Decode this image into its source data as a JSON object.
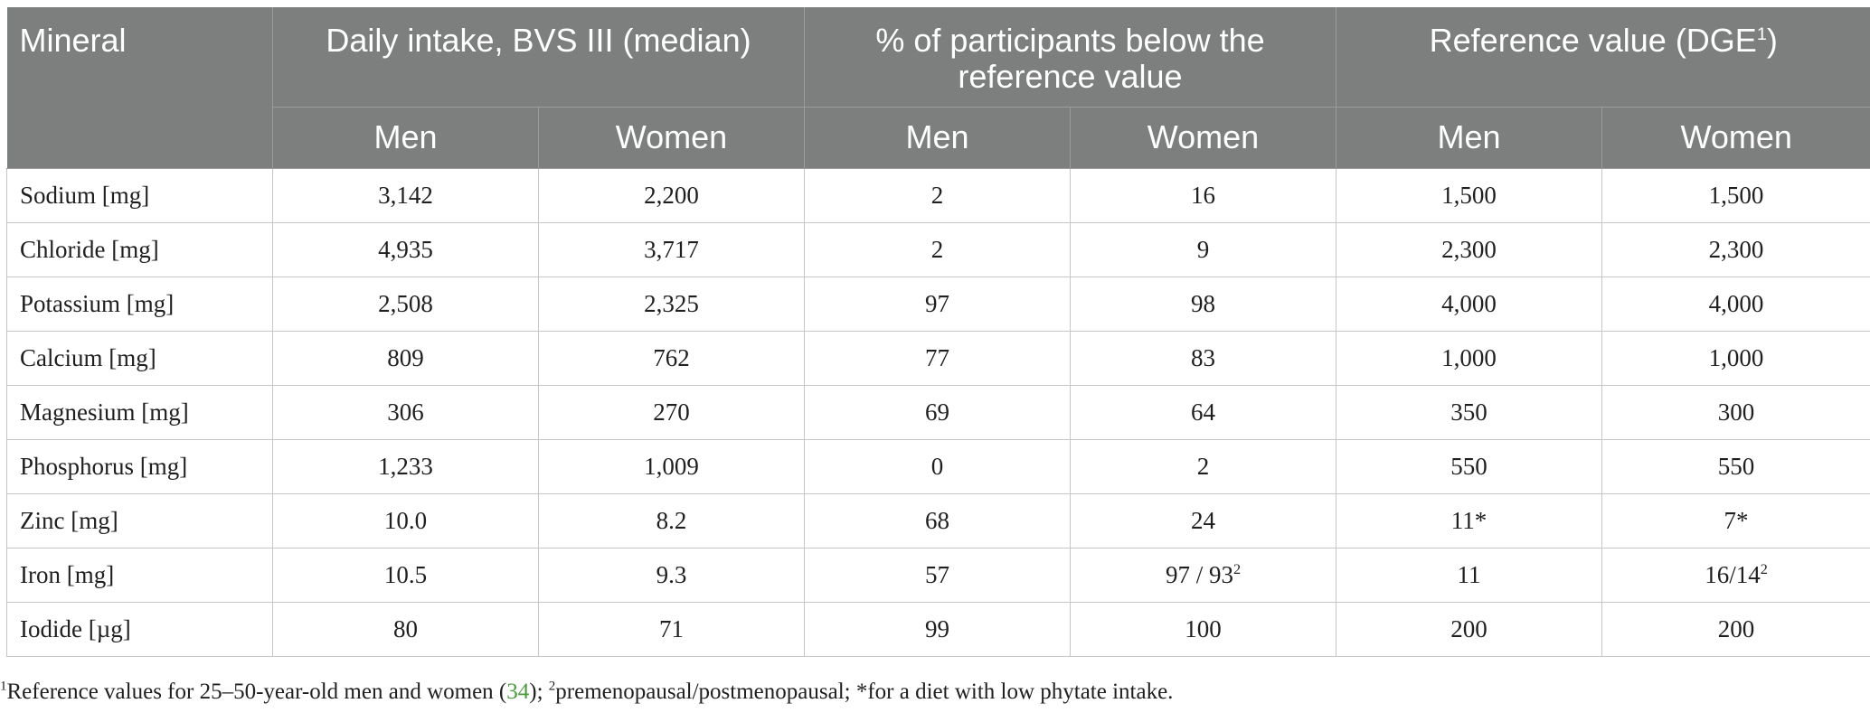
{
  "table": {
    "headers": {
      "mineral": "Mineral",
      "group_intake": "Daily intake, BVS III (median)",
      "group_below": "% of participants below the reference value",
      "group_reference": "Reference value (DGE",
      "group_reference_sup": "1",
      "group_reference_close": ")",
      "men": "Men",
      "women": "Women"
    },
    "rows": [
      {
        "mineral": "Sodium [mg]",
        "intake_men": "3,142",
        "intake_women": "2,200",
        "below_men": "2",
        "below_women": "16",
        "below_women_sup": "",
        "ref_men": "1,500",
        "ref_women": "1,500",
        "ref_women_sup": ""
      },
      {
        "mineral": "Chloride [mg]",
        "intake_men": "4,935",
        "intake_women": "3,717",
        "below_men": "2",
        "below_women": "9",
        "below_women_sup": "",
        "ref_men": "2,300",
        "ref_women": "2,300",
        "ref_women_sup": ""
      },
      {
        "mineral": "Potassium [mg]",
        "intake_men": "2,508",
        "intake_women": "2,325",
        "below_men": "97",
        "below_women": "98",
        "below_women_sup": "",
        "ref_men": "4,000",
        "ref_women": "4,000",
        "ref_women_sup": ""
      },
      {
        "mineral": "Calcium [mg]",
        "intake_men": "809",
        "intake_women": "762",
        "below_men": "77",
        "below_women": "83",
        "below_women_sup": "",
        "ref_men": "1,000",
        "ref_women": "1,000",
        "ref_women_sup": ""
      },
      {
        "mineral": "Magnesium [mg]",
        "intake_men": "306",
        "intake_women": "270",
        "below_men": "69",
        "below_women": "64",
        "below_women_sup": "",
        "ref_men": "350",
        "ref_women": "300",
        "ref_women_sup": ""
      },
      {
        "mineral": "Phosphorus [mg]",
        "intake_men": "1,233",
        "intake_women": "1,009",
        "below_men": "0",
        "below_women": "2",
        "below_women_sup": "",
        "ref_men": "550",
        "ref_women": "550",
        "ref_women_sup": ""
      },
      {
        "mineral": "Zinc [mg]",
        "intake_men": "10.0",
        "intake_women": "8.2",
        "below_men": "68",
        "below_women": "24",
        "below_women_sup": "",
        "ref_men": "11*",
        "ref_women": "7*",
        "ref_women_sup": ""
      },
      {
        "mineral": "Iron [mg]",
        "intake_men": "10.5",
        "intake_women": "9.3",
        "below_men": "57",
        "below_women": "97 / 93",
        "below_women_sup": "2",
        "ref_men": "11",
        "ref_women": "16/14",
        "ref_women_sup": "2"
      },
      {
        "mineral": "Iodide [µg]",
        "intake_men": "80",
        "intake_women": "71",
        "below_men": "99",
        "below_women": "100",
        "below_women_sup": "",
        "ref_men": "200",
        "ref_women": "200",
        "ref_women_sup": ""
      }
    ]
  },
  "footnote": {
    "sup1": "1",
    "text1": "Reference values for 25–50-year-old men and women (",
    "ref": "34",
    "text2": "); ",
    "sup2": "2",
    "text3": "premenopausal/postmenopausal; *for a diet with low phytate intake."
  },
  "colors": {
    "header_bg": "#7d7e7e",
    "header_text": "#ffffff",
    "grid": "#c6c6c6",
    "link": "#4a9c3c"
  }
}
